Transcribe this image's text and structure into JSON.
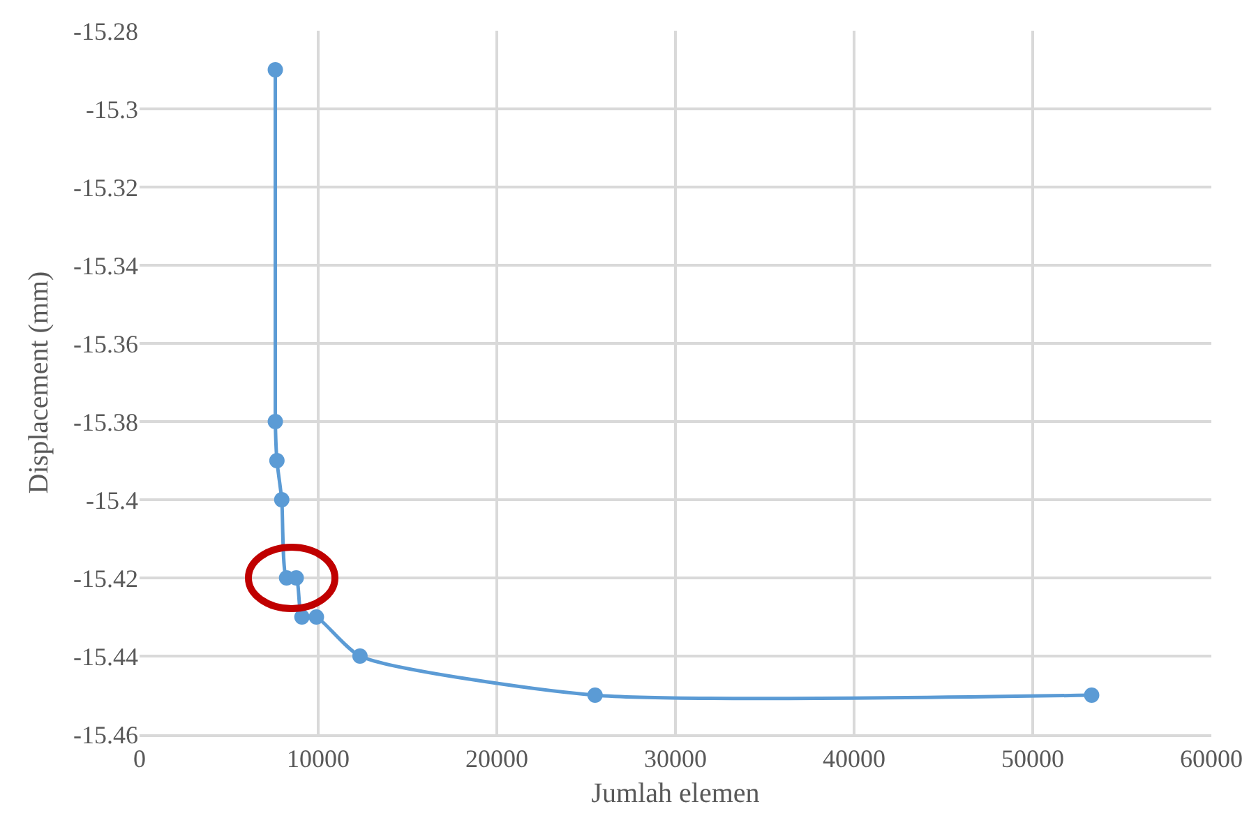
{
  "chart_data": {
    "type": "line",
    "xlabel": "Jumlah elemen",
    "ylabel": "Displacement (mm)",
    "x": [
      7600,
      7600,
      7690,
      7960,
      8230,
      8770,
      9090,
      9900,
      12340,
      25500,
      53300
    ],
    "series": [
      {
        "color": "#5b9bd5",
        "values": [
          -15.29,
          -15.38,
          -15.39,
          -15.4,
          -15.42,
          -15.42,
          -15.43,
          -15.43,
          -15.44,
          -15.45,
          -15.45
        ]
      }
    ],
    "xlim": [
      0,
      60000
    ],
    "xticks": [
      0,
      10000,
      20000,
      30000,
      40000,
      50000,
      60000
    ],
    "ylim": [
      -15.46,
      -15.28
    ],
    "yticks": [
      -15.46,
      -15.44,
      -15.42,
      -15.4,
      -15.38,
      -15.36,
      -15.34,
      -15.32,
      -15.3,
      -15.28
    ],
    "grid": true,
    "legend": false,
    "marker": "circle",
    "line_style": "solid"
  }
}
